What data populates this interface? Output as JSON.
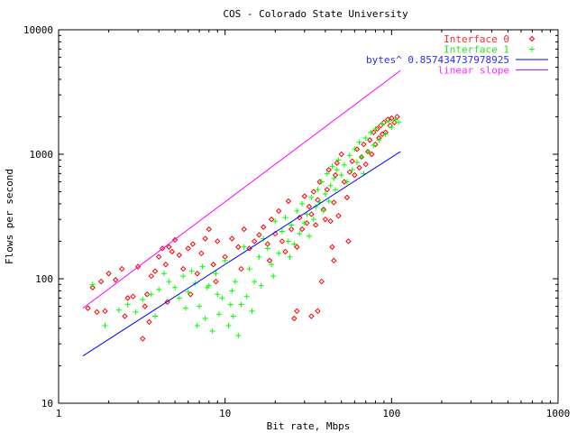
{
  "chart_data": {
    "type": "scatter",
    "title": "COS - Colorado State University",
    "xlabel": "Bit rate, Mbps",
    "ylabel": "Flows per second",
    "xscale": "log",
    "yscale": "log",
    "xlim": [
      1,
      1000
    ],
    "ylim": [
      10,
      10000
    ],
    "x_ticks": [
      "1",
      "10",
      "100",
      "1000"
    ],
    "y_ticks": [
      "10",
      "100",
      "1000",
      "10000"
    ],
    "grid": false,
    "legend_position": "top-right",
    "series": [
      {
        "name": "Interface 0",
        "marker": "diamond",
        "color": "#ff0000",
        "points": [
          [
            1.5,
            58
          ],
          [
            1.7,
            54
          ],
          [
            1.8,
            95
          ],
          [
            1.9,
            55
          ],
          [
            2.0,
            110
          ],
          [
            2.2,
            98
          ],
          [
            2.4,
            120
          ],
          [
            2.6,
            70
          ],
          [
            2.8,
            72
          ],
          [
            3.0,
            125
          ],
          [
            3.2,
            33
          ],
          [
            3.4,
            75
          ],
          [
            3.6,
            105
          ],
          [
            3.8,
            115
          ],
          [
            4.0,
            150
          ],
          [
            4.2,
            175
          ],
          [
            4.4,
            130
          ],
          [
            4.6,
            180
          ],
          [
            4.8,
            165
          ],
          [
            5.0,
            205
          ],
          [
            5.3,
            155
          ],
          [
            5.6,
            120
          ],
          [
            6.0,
            175
          ],
          [
            6.4,
            190
          ],
          [
            6.8,
            110
          ],
          [
            7.2,
            160
          ],
          [
            7.6,
            210
          ],
          [
            8.0,
            250
          ],
          [
            8.5,
            130
          ],
          [
            9.0,
            200
          ],
          [
            10,
            150
          ],
          [
            11,
            210
          ],
          [
            12,
            180
          ],
          [
            13,
            250
          ],
          [
            14,
            175
          ],
          [
            15,
            200
          ],
          [
            16,
            225
          ],
          [
            17,
            260
          ],
          [
            18,
            190
          ],
          [
            19,
            300
          ],
          [
            20,
            230
          ],
          [
            21,
            350
          ],
          [
            22,
            200
          ],
          [
            23,
            165
          ],
          [
            24,
            420
          ],
          [
            25,
            250
          ],
          [
            26,
            48
          ],
          [
            27,
            55
          ],
          [
            28,
            310
          ],
          [
            29,
            250
          ],
          [
            30,
            460
          ],
          [
            31,
            280
          ],
          [
            32,
            380
          ],
          [
            33,
            330
          ],
          [
            34,
            500
          ],
          [
            35,
            270
          ],
          [
            36,
            430
          ],
          [
            37,
            600
          ],
          [
            38,
            95
          ],
          [
            39,
            360
          ],
          [
            40,
            300
          ],
          [
            41,
            520
          ],
          [
            42,
            750
          ],
          [
            43,
            290
          ],
          [
            44,
            180
          ],
          [
            45,
            410
          ],
          [
            46,
            680
          ],
          [
            47,
            850
          ],
          [
            48,
            320
          ],
          [
            50,
            1000
          ],
          [
            52,
            600
          ],
          [
            54,
            450
          ],
          [
            56,
            720
          ],
          [
            58,
            880
          ],
          [
            60,
            680
          ],
          [
            62,
            1100
          ],
          [
            64,
            780
          ],
          [
            66,
            950
          ],
          [
            68,
            1200
          ],
          [
            70,
            830
          ],
          [
            72,
            1050
          ],
          [
            74,
            1300
          ],
          [
            76,
            1000
          ],
          [
            78,
            1500
          ],
          [
            80,
            1200
          ],
          [
            82,
            1600
          ],
          [
            84,
            1350
          ],
          [
            86,
            1700
          ],
          [
            88,
            1450
          ],
          [
            90,
            1800
          ],
          [
            92,
            1500
          ],
          [
            95,
            1900
          ],
          [
            98,
            1700
          ],
          [
            100,
            1950
          ],
          [
            104,
            1800
          ],
          [
            108,
            2000
          ],
          [
            3.3,
            60
          ],
          [
            4.5,
            65
          ],
          [
            6.2,
            75
          ],
          [
            8.8,
            95
          ],
          [
            12.5,
            120
          ],
          [
            18.5,
            140
          ],
          [
            27,
            180
          ],
          [
            33,
            50
          ],
          [
            36,
            55
          ],
          [
            45,
            140
          ],
          [
            55,
            200
          ],
          [
            1.6,
            85
          ],
          [
            2.5,
            50
          ],
          [
            3.5,
            45
          ]
        ]
      },
      {
        "name": "Interface 1",
        "marker": "plus",
        "color": "#00ff00",
        "points": [
          [
            1.6,
            90
          ],
          [
            1.9,
            42
          ],
          [
            2.3,
            56
          ],
          [
            2.6,
            62
          ],
          [
            2.9,
            54
          ],
          [
            3.2,
            68
          ],
          [
            3.6,
            75
          ],
          [
            4.0,
            82
          ],
          [
            4.3,
            110
          ],
          [
            4.6,
            95
          ],
          [
            5.0,
            85
          ],
          [
            5.3,
            70
          ],
          [
            5.6,
            105
          ],
          [
            6.0,
            78
          ],
          [
            6.3,
            115
          ],
          [
            6.6,
            92
          ],
          [
            7.0,
            60
          ],
          [
            7.3,
            125
          ],
          [
            7.6,
            48
          ],
          [
            8.0,
            88
          ],
          [
            8.4,
            38
          ],
          [
            8.8,
            110
          ],
          [
            9.2,
            52
          ],
          [
            9.6,
            70
          ],
          [
            10,
            140
          ],
          [
            10.5,
            42
          ],
          [
            11,
            80
          ],
          [
            11.5,
            95
          ],
          [
            12,
            35
          ],
          [
            12.5,
            62
          ],
          [
            13,
            180
          ],
          [
            14,
            120
          ],
          [
            15,
            95
          ],
          [
            16,
            150
          ],
          [
            17,
            210
          ],
          [
            18,
            175
          ],
          [
            19,
            130
          ],
          [
            20,
            290
          ],
          [
            21,
            160
          ],
          [
            22,
            240
          ],
          [
            23,
            310
          ],
          [
            24,
            200
          ],
          [
            25,
            270
          ],
          [
            26,
            190
          ],
          [
            27,
            350
          ],
          [
            28,
            230
          ],
          [
            29,
            400
          ],
          [
            30,
            280
          ],
          [
            31,
            330
          ],
          [
            32,
            220
          ],
          [
            33,
            450
          ],
          [
            34,
            300
          ],
          [
            35,
            380
          ],
          [
            36,
            520
          ],
          [
            37,
            410
          ],
          [
            38,
            600
          ],
          [
            39,
            350
          ],
          [
            40,
            480
          ],
          [
            41,
            700
          ],
          [
            42,
            420
          ],
          [
            43,
            560
          ],
          [
            44,
            800
          ],
          [
            45,
            640
          ],
          [
            46,
            520
          ],
          [
            47,
            750
          ],
          [
            48,
            900
          ],
          [
            50,
            680
          ],
          [
            52,
            820
          ],
          [
            54,
            600
          ],
          [
            56,
            980
          ],
          [
            58,
            750
          ],
          [
            60,
            1100
          ],
          [
            62,
            860
          ],
          [
            64,
            1250
          ],
          [
            66,
            950
          ],
          [
            68,
            700
          ],
          [
            70,
            1350
          ],
          [
            72,
            1050
          ],
          [
            75,
            1500
          ],
          [
            78,
            1180
          ],
          [
            80,
            1600
          ],
          [
            84,
            1300
          ],
          [
            88,
            1750
          ],
          [
            92,
            1450
          ],
          [
            96,
            1850
          ],
          [
            100,
            1650
          ],
          [
            105,
            1900
          ],
          [
            110,
            1800
          ],
          [
            7.8,
            85
          ],
          [
            9.0,
            75
          ],
          [
            10.8,
            62
          ],
          [
            13.5,
            72
          ],
          [
            16.5,
            88
          ],
          [
            19.5,
            105
          ],
          [
            24.5,
            150
          ],
          [
            3.8,
            50
          ],
          [
            5.8,
            58
          ],
          [
            6.8,
            42
          ],
          [
            11.2,
            50
          ],
          [
            14.5,
            55
          ]
        ]
      },
      {
        "name": "bytes^ 0.857434737978925",
        "type": "line",
        "color": "#0000ff",
        "points": [
          [
            1.4,
            24
          ],
          [
            113,
            1050
          ]
        ]
      },
      {
        "name": "linear slope",
        "type": "line",
        "color": "#ff00ff",
        "points": [
          [
            1.4,
            58
          ],
          [
            113,
            4700
          ]
        ]
      }
    ]
  }
}
